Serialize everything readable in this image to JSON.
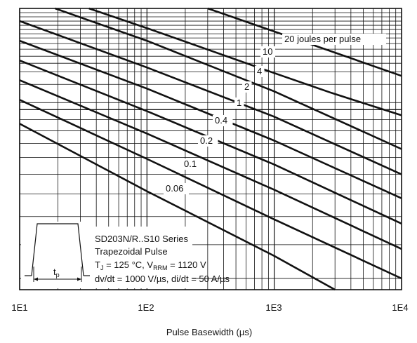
{
  "chart_data": {
    "type": "line",
    "xlabel": "Pulse Basewidth (µs)",
    "xscale": "log",
    "xlim": [
      10,
      10000
    ],
    "x_ticks": [
      "1E1",
      "1E2",
      "1E3",
      "1E4"
    ],
    "ylabel": "",
    "grid": true,
    "series": [
      {
        "name": "20 joules per pulse",
        "x": [
          300,
          1400,
          10000
        ],
        "y": [
          1.0,
          0.895,
          0.76
        ]
      },
      {
        "name": "10",
        "x": [
          35,
          100,
          1000,
          2800,
          10000
        ],
        "y": [
          1.0,
          0.93,
          0.77,
          0.7,
          0.62
        ]
      },
      {
        "name": "4",
        "x": [
          19,
          100,
          1000,
          10000
        ],
        "y": [
          1.0,
          0.885,
          0.705,
          0.5
        ]
      },
      {
        "name": "2",
        "x": [
          10,
          100,
          1000,
          10000
        ],
        "y": [
          0.955,
          0.79,
          0.615,
          0.41
        ]
      },
      {
        "name": "1",
        "x": [
          10,
          100,
          1000,
          10000
        ],
        "y": [
          0.885,
          0.715,
          0.53,
          0.325
        ]
      },
      {
        "name": "0.4",
        "x": [
          10,
          100,
          1000,
          10000
        ],
        "y": [
          0.815,
          0.635,
          0.445,
          0.235
        ]
      },
      {
        "name": "0.2",
        "x": [
          10,
          100,
          1000,
          10000
        ],
        "y": [
          0.745,
          0.555,
          0.355,
          0.145
        ]
      },
      {
        "name": "0.1",
        "x": [
          10,
          100,
          1000,
          10000
        ],
        "y": [
          0.675,
          0.465,
          0.25,
          0.04
        ]
      },
      {
        "name": "0.06",
        "x": [
          10,
          100,
          1000,
          3000
        ],
        "y": [
          0.59,
          0.35,
          0.12,
          0.0
        ]
      }
    ],
    "annotation": {
      "line1": "SD203N/R..S10 Series",
      "line2": "Trapezoidal Pulse",
      "line3_a": "T",
      "line3_sub1": "J",
      "line3_b": " = 125 °C, V",
      "line3_sub2": "RRM",
      "line3_c": " = 1120 V",
      "line4": "dv/dt = 1000 V/µs, di/dt = 50 A/µs",
      "pulse_label": "t",
      "pulse_sub": "p"
    }
  }
}
